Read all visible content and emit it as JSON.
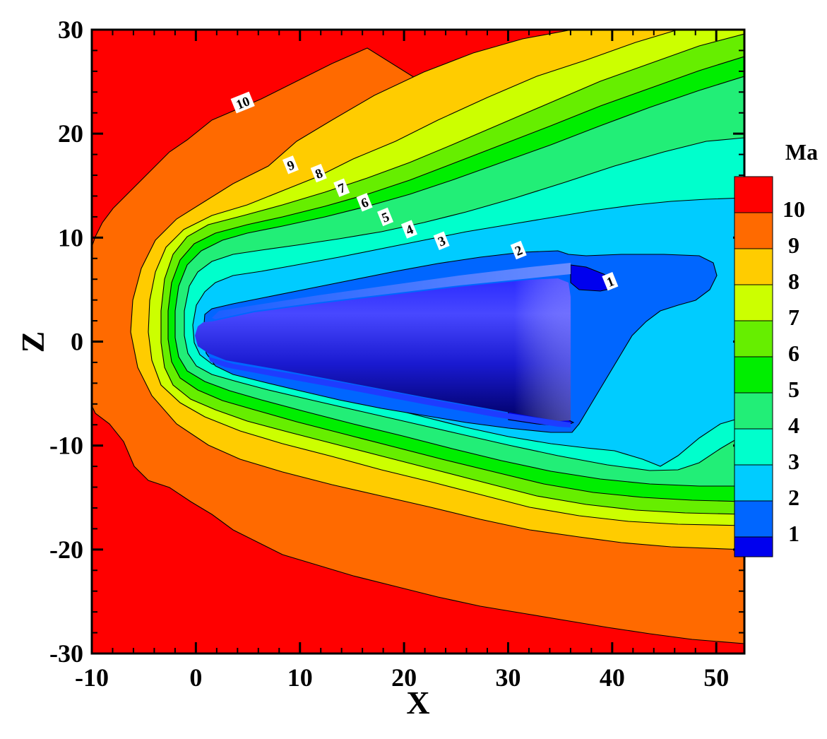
{
  "chart_data": {
    "type": "contour",
    "xlabel": "X",
    "ylabel": "Z",
    "xlim": [
      -10,
      52.7
    ],
    "ylim": [
      -30,
      30
    ],
    "xticks": [
      -10,
      0,
      10,
      20,
      30,
      40,
      50
    ],
    "yticks": [
      -30,
      -20,
      -10,
      0,
      10,
      20,
      30
    ],
    "xtick_labels": [
      "-10",
      "0",
      "10",
      "20",
      "30",
      "40",
      "50"
    ],
    "ytick_labels": [
      "-30",
      "-20",
      "-10",
      "0",
      "10",
      "20",
      "30"
    ],
    "legend": {
      "title": "Ma",
      "placement": "right",
      "levels": [
        10,
        9,
        8,
        7,
        6,
        5,
        4,
        3,
        2,
        1
      ],
      "labels": [
        "10",
        "9",
        "8",
        "7",
        "6",
        "5",
        "4",
        "3",
        "2",
        "1"
      ],
      "colors": [
        "#ff0000",
        "#ff6a00",
        "#ffcc00",
        "#ccff00",
        "#66ee00",
        "#00ee00",
        "#22ee77",
        "#00ffcc",
        "#00ccff",
        "#0066ff",
        "#0000ee"
      ]
    },
    "contour_labels": [
      {
        "text": "10",
        "x": 4.5,
        "z": 23.0
      },
      {
        "text": "9",
        "x": 9.1,
        "z": 17.0
      },
      {
        "text": "8",
        "x": 11.8,
        "z": 16.2
      },
      {
        "text": "7",
        "x": 14.0,
        "z": 14.8
      },
      {
        "text": "6",
        "x": 16.2,
        "z": 13.4
      },
      {
        "text": "5",
        "x": 18.2,
        "z": 12.0
      },
      {
        "text": "4",
        "x": 20.5,
        "z": 10.8
      },
      {
        "text": "3",
        "x": 23.6,
        "z": 9.7
      },
      {
        "text": "2",
        "x": 31.0,
        "z": 8.8
      },
      {
        "text": "1",
        "x": 39.8,
        "z": 5.8
      }
    ]
  }
}
